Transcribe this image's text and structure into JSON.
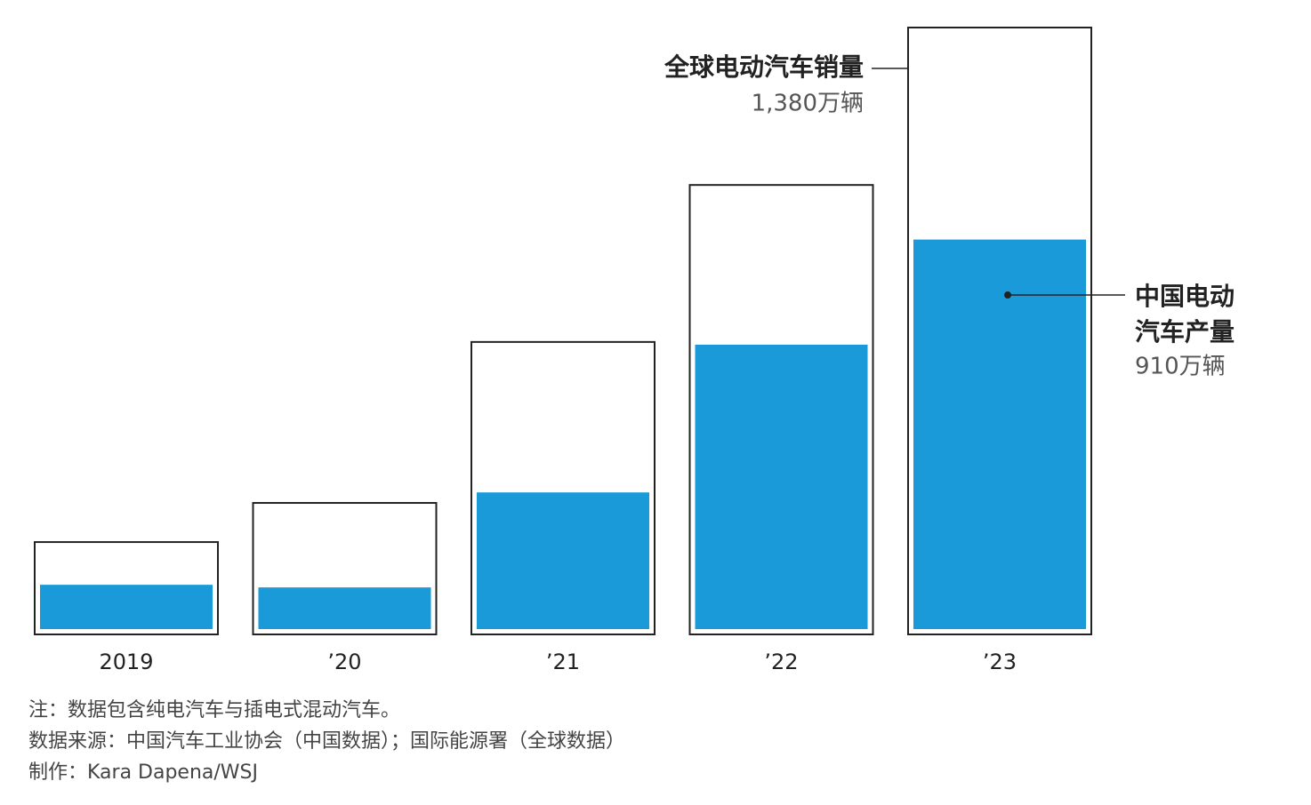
{
  "chart_data": {
    "type": "bar",
    "categories": [
      "2019",
      "’20",
      "’21",
      "’22",
      "’23"
    ],
    "series": [
      {
        "name": "全球电动汽车销量",
        "color": "#ffffff",
        "values": [
          210,
          299,
          665,
          1022,
          1380
        ],
        "value_labels": [
          null,
          null,
          null,
          null,
          "1,380万辆"
        ]
      },
      {
        "name": "中国电动汽车产量",
        "color": "#1a9ad9",
        "values": [
          125,
          119,
          335,
          671,
          910
        ],
        "value_labels": [
          null,
          null,
          null,
          null,
          "910万辆"
        ]
      }
    ],
    "ylim": [
      0,
      1380
    ],
    "notes": [
      "注：数据包含纯电汽车与插电式混动汽车。",
      "数据来源：中国汽车工业协会（中国数据）；国际能源署（全球数据）",
      "制作：Kara Dapena/WSJ"
    ]
  }
}
